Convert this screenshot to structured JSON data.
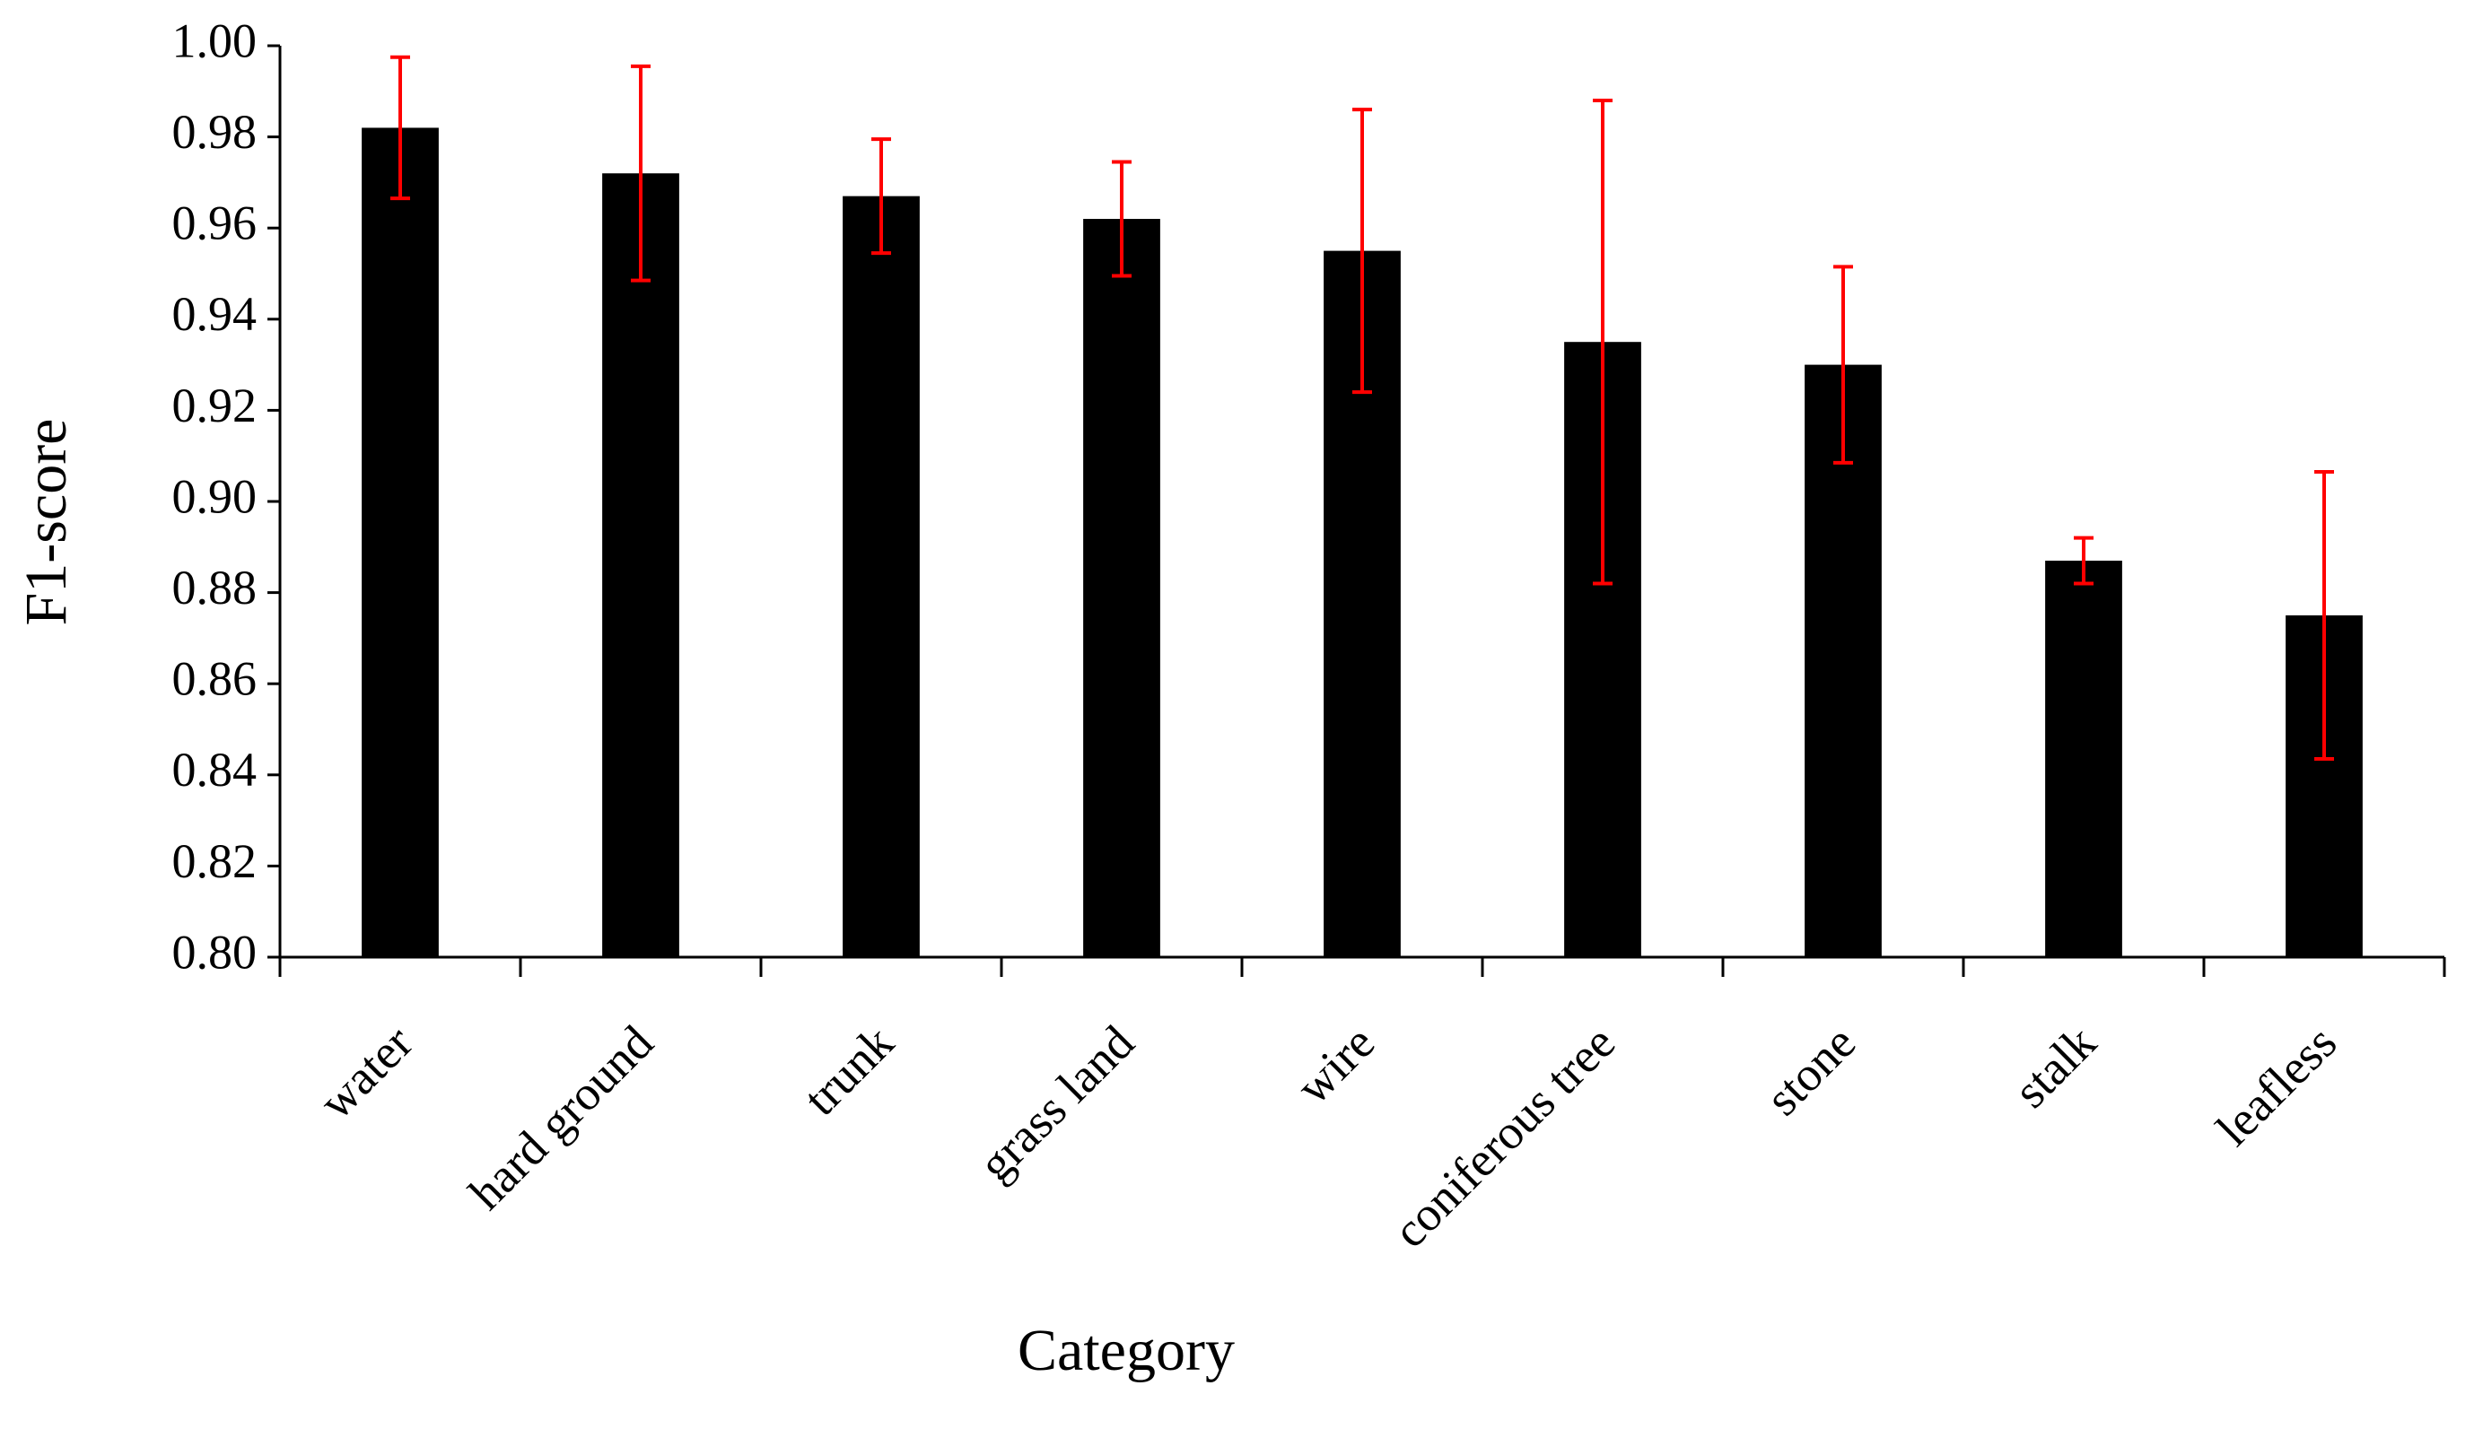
{
  "chart_data": {
    "type": "bar",
    "xlabel": "Category",
    "ylabel": "F1-score",
    "categories": [
      "water",
      "hard ground",
      "trunk",
      "grass land",
      "wire",
      "coniferous tree",
      "stone",
      "stalk",
      "leafless"
    ],
    "values": [
      0.982,
      0.972,
      0.967,
      0.962,
      0.955,
      0.935,
      0.93,
      0.887,
      0.875
    ],
    "errors": [
      0.0155,
      0.0235,
      0.0125,
      0.0125,
      0.031,
      0.053,
      0.0215,
      0.005,
      0.0315
    ],
    "color": "#000000",
    "error_color": "#ff0000",
    "ylim": [
      0.8,
      1.0
    ],
    "yticks": [
      {
        "value": 0.8,
        "label": "0.80"
      },
      {
        "value": 0.82,
        "label": "0.82"
      },
      {
        "value": 0.84,
        "label": "0.84"
      },
      {
        "value": 0.86,
        "label": "0.86"
      },
      {
        "value": 0.88,
        "label": "0.88"
      },
      {
        "value": 0.9,
        "label": "0.90"
      },
      {
        "value": 0.92,
        "label": "0.92"
      },
      {
        "value": 0.94,
        "label": "0.94"
      },
      {
        "value": 0.96,
        "label": "0.96"
      },
      {
        "value": 0.98,
        "label": "0.98"
      },
      {
        "value": 1.0,
        "label": "1.00"
      }
    ],
    "grid": false
  }
}
